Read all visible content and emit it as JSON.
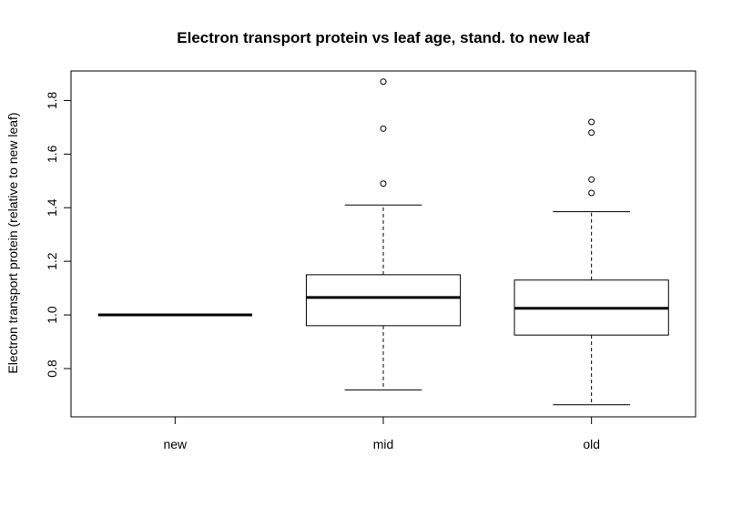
{
  "chart_data": {
    "type": "boxplot",
    "title": "Electron transport protein vs leaf age, stand. to new leaf",
    "xlabel": "",
    "ylabel": "Electron transport protein (relative to new leaf)",
    "categories": [
      "new",
      "mid",
      "old"
    ],
    "ylim": [
      0.62,
      1.91
    ],
    "yticks": [
      0.8,
      1.0,
      1.2,
      1.4,
      1.6,
      1.8
    ],
    "ytick_labels": [
      "0.8",
      "1.0",
      "1.2",
      "1.4",
      "1.6",
      "1.8"
    ],
    "boxes": [
      {
        "category": "new",
        "min": 1.0,
        "q1": 1.0,
        "median": 1.0,
        "q3": 1.0,
        "max": 1.0,
        "outliers": []
      },
      {
        "category": "mid",
        "min": 0.72,
        "q1": 0.96,
        "median": 1.065,
        "q3": 1.15,
        "max": 1.41,
        "outliers": [
          1.49,
          1.695,
          1.87
        ]
      },
      {
        "category": "old",
        "min": 0.665,
        "q1": 0.925,
        "median": 1.025,
        "q3": 1.13,
        "max": 1.385,
        "outliers": [
          1.455,
          1.505,
          1.68,
          1.72
        ]
      }
    ],
    "grid": false,
    "legend": "none"
  }
}
